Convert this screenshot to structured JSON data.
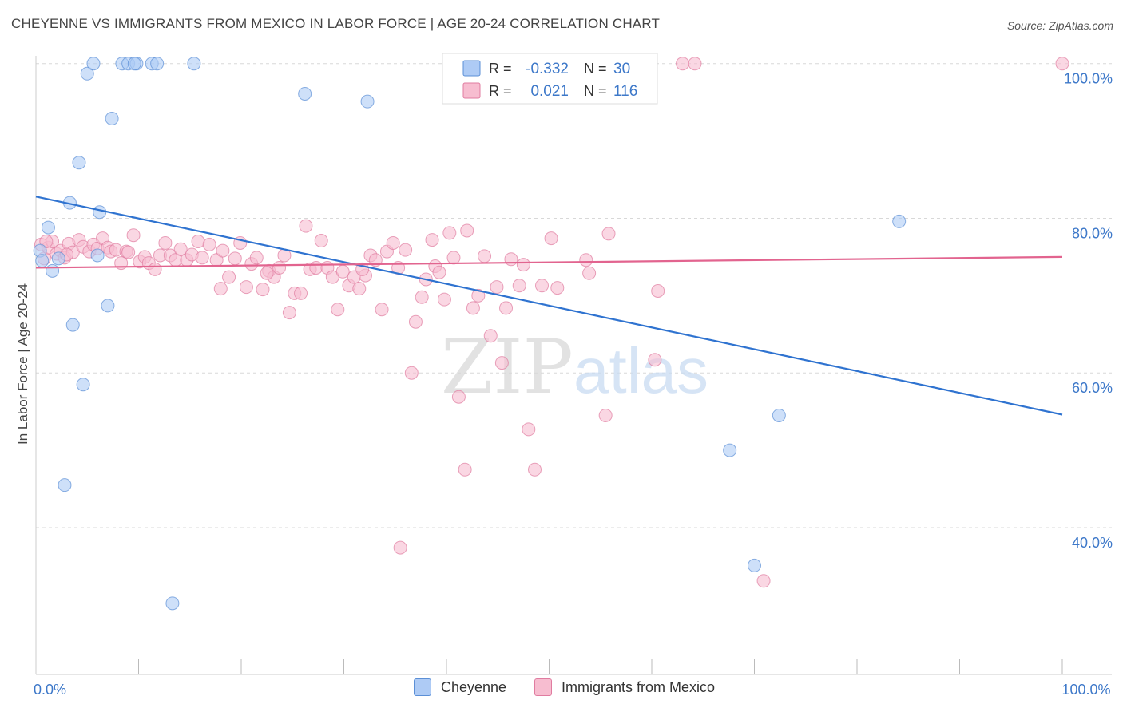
{
  "header": {
    "title": "CHEYENNE VS IMMIGRANTS FROM MEXICO IN LABOR FORCE | AGE 20-24 CORRELATION CHART",
    "source": "Source: ZipAtlas.com"
  },
  "watermark": {
    "part1": "ZIP",
    "part2": "atlas"
  },
  "colors": {
    "cheyenne_fill": "#aecbf5",
    "cheyenne_stroke": "#5b8fd6",
    "cheyenne_line": "#2f73d0",
    "mexico_fill": "#f7bdd0",
    "mexico_stroke": "#e07ca0",
    "mexico_line": "#e2648f",
    "tick_label": "#3d78c9",
    "grid": "#d8d8d8"
  },
  "legend_top": {
    "rows": [
      {
        "series": "cheyenne",
        "r_label": "R =",
        "r_value": "-0.332",
        "n_label": "N =",
        "n_value": "30"
      },
      {
        "series": "mexico",
        "r_label": "R =",
        "r_value": "0.021",
        "n_label": "N =",
        "n_value": "116"
      }
    ]
  },
  "chart_data": {
    "type": "scatter",
    "xlabel": "",
    "ylabel": "In Labor Force | Age 20-24",
    "xlim": [
      0,
      100
    ],
    "ylim": [
      21,
      101
    ],
    "x_tick_labels": [
      {
        "value": 0,
        "label": "0.0%"
      },
      {
        "value": 100,
        "label": "100.0%"
      }
    ],
    "x_minor_ticks": [
      10,
      20,
      30,
      40,
      50,
      60,
      70,
      80,
      90,
      100
    ],
    "y_tick_labels": [
      {
        "value": 100,
        "label": "100.0%"
      },
      {
        "value": 80,
        "label": "80.0%"
      },
      {
        "value": 60,
        "label": "60.0%"
      },
      {
        "value": 40,
        "label": "40.0%"
      }
    ],
    "grid": true,
    "legend": "top-center",
    "series": [
      {
        "name": "Cheyenne",
        "key": "cheyenne",
        "trend": [
          [
            0,
            82.8
          ],
          [
            100,
            54.6
          ]
        ],
        "points": [
          [
            0.4,
            75.8
          ],
          [
            0.6,
            74.5
          ],
          [
            1.2,
            78.8
          ],
          [
            1.6,
            73.2
          ],
          [
            2.2,
            74.8
          ],
          [
            2.8,
            45.5
          ],
          [
            3.6,
            66.2
          ],
          [
            4.2,
            87.2
          ],
          [
            4.6,
            58.5
          ],
          [
            5.0,
            98.7
          ],
          [
            5.6,
            100
          ],
          [
            6.0,
            75.2
          ],
          [
            6.2,
            80.8
          ],
          [
            7.0,
            68.7
          ],
          [
            7.4,
            92.9
          ],
          [
            8.4,
            100
          ],
          [
            9.0,
            100
          ],
          [
            9.8,
            100
          ],
          [
            11.3,
            100
          ],
          [
            11.8,
            100
          ],
          [
            13.3,
            30.2
          ],
          [
            15.4,
            100
          ],
          [
            26.2,
            96.1
          ],
          [
            32.3,
            95.1
          ],
          [
            3.3,
            82.0
          ],
          [
            67.6,
            50.0
          ],
          [
            72.4,
            54.5
          ],
          [
            84.1,
            79.6
          ],
          [
            70.0,
            35.1
          ],
          [
            9.6,
            100
          ]
        ]
      },
      {
        "name": "Immigrants from Mexico",
        "key": "mexico",
        "trend": [
          [
            0,
            73.6
          ],
          [
            100,
            75.0
          ]
        ],
        "points": [
          [
            0.5,
            76.6
          ],
          [
            0.8,
            74.8
          ],
          [
            1.2,
            76.2
          ],
          [
            1.6,
            77.0
          ],
          [
            2.0,
            75.4
          ],
          [
            2.4,
            75.8
          ],
          [
            2.8,
            74.9
          ],
          [
            3.2,
            76.7
          ],
          [
            3.6,
            75.6
          ],
          [
            4.2,
            77.2
          ],
          [
            4.6,
            76.3
          ],
          [
            5.2,
            75.7
          ],
          [
            5.6,
            76.6
          ],
          [
            6.0,
            76.1
          ],
          [
            6.5,
            77.4
          ],
          [
            7.0,
            76.2
          ],
          [
            7.3,
            75.7
          ],
          [
            7.8,
            75.9
          ],
          [
            8.3,
            74.2
          ],
          [
            8.8,
            75.7
          ],
          [
            9.5,
            77.8
          ],
          [
            10.1,
            74.4
          ],
          [
            10.6,
            75.0
          ],
          [
            11.0,
            74.2
          ],
          [
            11.6,
            73.4
          ],
          [
            12.1,
            75.2
          ],
          [
            12.6,
            76.8
          ],
          [
            13.1,
            75.2
          ],
          [
            13.6,
            74.6
          ],
          [
            14.1,
            76.0
          ],
          [
            14.7,
            74.6
          ],
          [
            15.2,
            75.3
          ],
          [
            15.8,
            77.0
          ],
          [
            16.2,
            74.9
          ],
          [
            16.9,
            76.6
          ],
          [
            17.6,
            74.6
          ],
          [
            18.2,
            75.8
          ],
          [
            18.8,
            72.4
          ],
          [
            19.4,
            74.8
          ],
          [
            19.9,
            76.8
          ],
          [
            20.5,
            71.1
          ],
          [
            21.0,
            74.1
          ],
          [
            21.5,
            74.9
          ],
          [
            22.1,
            70.8
          ],
          [
            22.7,
            73.2
          ],
          [
            23.2,
            72.4
          ],
          [
            23.7,
            73.6
          ],
          [
            24.2,
            75.2
          ],
          [
            24.7,
            67.8
          ],
          [
            25.2,
            70.3
          ],
          [
            25.8,
            70.3
          ],
          [
            26.3,
            79.0
          ],
          [
            26.7,
            73.4
          ],
          [
            27.3,
            73.6
          ],
          [
            27.8,
            77.1
          ],
          [
            28.4,
            73.6
          ],
          [
            28.9,
            72.4
          ],
          [
            29.4,
            68.2
          ],
          [
            29.9,
            73.1
          ],
          [
            30.5,
            71.3
          ],
          [
            31.0,
            72.4
          ],
          [
            31.5,
            70.9
          ],
          [
            32.1,
            72.6
          ],
          [
            32.6,
            75.2
          ],
          [
            33.1,
            74.6
          ],
          [
            33.7,
            68.2
          ],
          [
            34.2,
            75.7
          ],
          [
            34.8,
            76.8
          ],
          [
            35.3,
            73.6
          ],
          [
            36.0,
            75.9
          ],
          [
            36.6,
            60.0
          ],
          [
            37.0,
            66.6
          ],
          [
            37.6,
            69.8
          ],
          [
            38.0,
            72.1
          ],
          [
            38.6,
            77.2
          ],
          [
            38.9,
            73.8
          ],
          [
            39.3,
            73.0
          ],
          [
            39.8,
            69.5
          ],
          [
            40.3,
            78.1
          ],
          [
            40.7,
            74.9
          ],
          [
            41.2,
            56.9
          ],
          [
            41.8,
            47.5
          ],
          [
            42.0,
            78.4
          ],
          [
            42.6,
            68.4
          ],
          [
            43.1,
            70.0
          ],
          [
            43.7,
            75.1
          ],
          [
            44.3,
            64.8
          ],
          [
            44.9,
            71.1
          ],
          [
            45.4,
            61.3
          ],
          [
            45.8,
            68.4
          ],
          [
            46.3,
            74.7
          ],
          [
            47.1,
            71.3
          ],
          [
            48.0,
            52.7
          ],
          [
            48.6,
            47.5
          ],
          [
            49.3,
            71.3
          ],
          [
            50.2,
            77.4
          ],
          [
            50.8,
            71.0
          ],
          [
            53.6,
            74.6
          ],
          [
            53.9,
            72.9
          ],
          [
            55.5,
            54.5
          ],
          [
            55.8,
            78.0
          ],
          [
            60.3,
            61.7
          ],
          [
            60.6,
            70.6
          ],
          [
            63.0,
            100
          ],
          [
            64.2,
            100
          ],
          [
            70.9,
            33.1
          ],
          [
            100,
            100
          ],
          [
            35.5,
            37.4
          ],
          [
            1.0,
            77.0
          ],
          [
            3.0,
            75.3
          ],
          [
            9.0,
            75.6
          ],
          [
            18.0,
            70.9
          ],
          [
            22.5,
            72.9
          ],
          [
            31.8,
            73.4
          ],
          [
            47.5,
            74.0
          ],
          [
            49.7,
            100
          ]
        ]
      }
    ]
  },
  "legend_bottom": [
    {
      "label": "Cheyenne",
      "series": "cheyenne"
    },
    {
      "label": "Immigrants from Mexico",
      "series": "mexico"
    }
  ]
}
